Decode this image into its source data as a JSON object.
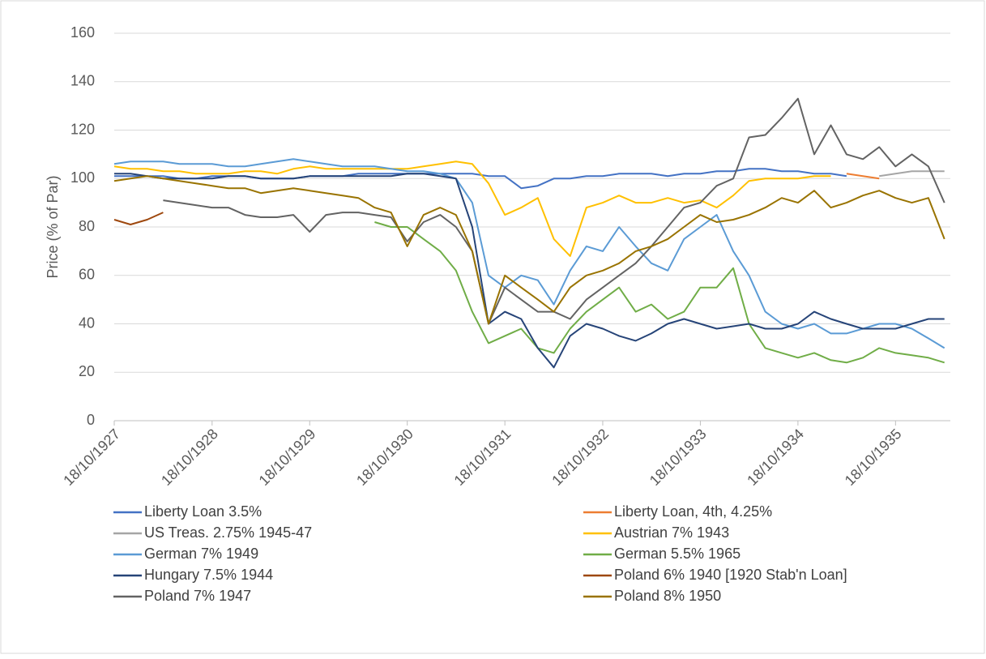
{
  "chart_data": {
    "type": "line",
    "y_label": "Price (% of Par)",
    "x": [
      "1927-10-18",
      "1927-12-18",
      "1928-02-18",
      "1928-04-18",
      "1928-06-18",
      "1928-08-18",
      "1928-10-18",
      "1928-12-18",
      "1929-02-18",
      "1929-04-18",
      "1929-06-18",
      "1929-08-18",
      "1929-10-18",
      "1929-12-18",
      "1930-02-18",
      "1930-04-18",
      "1930-06-18",
      "1930-08-18",
      "1930-10-18",
      "1930-12-18",
      "1931-02-18",
      "1931-04-18",
      "1931-06-18",
      "1931-08-18",
      "1931-10-18",
      "1931-12-18",
      "1932-02-18",
      "1932-04-18",
      "1932-06-18",
      "1932-08-18",
      "1932-10-18",
      "1932-12-18",
      "1933-02-18",
      "1933-04-18",
      "1933-06-18",
      "1933-08-18",
      "1933-10-18",
      "1933-12-18",
      "1934-02-18",
      "1934-04-18",
      "1934-06-18",
      "1934-08-18",
      "1934-10-18",
      "1934-12-18",
      "1935-02-18",
      "1935-04-18",
      "1935-06-18",
      "1935-08-18",
      "1935-10-18",
      "1935-12-18",
      "1936-02-18",
      "1936-04-18"
    ],
    "xlim": [
      "1927-10-18",
      "1936-05-10"
    ],
    "xticks": [
      {
        "value": "1927-10-18",
        "label": "18/10/1927"
      },
      {
        "value": "1928-10-18",
        "label": "18/10/1928"
      },
      {
        "value": "1929-10-18",
        "label": "18/10/1929"
      },
      {
        "value": "1930-10-18",
        "label": "18/10/1930"
      },
      {
        "value": "1931-10-18",
        "label": "18/10/1931"
      },
      {
        "value": "1932-10-18",
        "label": "18/10/1932"
      },
      {
        "value": "1933-10-18",
        "label": "18/10/1933"
      },
      {
        "value": "1934-10-18",
        "label": "18/10/1934"
      },
      {
        "value": "1935-10-18",
        "label": "18/10/1935"
      }
    ],
    "ylim": [
      0,
      160
    ],
    "yticks": [
      0,
      20,
      40,
      60,
      80,
      100,
      120,
      140,
      160
    ],
    "grid": true,
    "legend": "bottom",
    "series": [
      {
        "name": "Liberty Loan 3.5%",
        "color": "#4472c4",
        "values": [
          101,
          101,
          101,
          101,
          100,
          100,
          101,
          101,
          101,
          100,
          100,
          100,
          101,
          101,
          101,
          102,
          102,
          102,
          102,
          102,
          102,
          102,
          102,
          101,
          101,
          96,
          97,
          100,
          100,
          101,
          101,
          102,
          102,
          102,
          101,
          102,
          102,
          103,
          103,
          104,
          104,
          103,
          103,
          102,
          102,
          101,
          null,
          null,
          null,
          null,
          null,
          null
        ]
      },
      {
        "name": "Liberty Loan, 4th, 4.25%",
        "color": "#ed7d31",
        "values": [
          null,
          null,
          null,
          null,
          null,
          null,
          null,
          null,
          null,
          null,
          null,
          null,
          null,
          null,
          null,
          null,
          null,
          null,
          null,
          null,
          null,
          null,
          null,
          null,
          null,
          null,
          null,
          null,
          null,
          null,
          null,
          null,
          null,
          null,
          null,
          null,
          null,
          null,
          null,
          null,
          null,
          null,
          null,
          null,
          null,
          102,
          101,
          100,
          null,
          null,
          null,
          null
        ]
      },
      {
        "name": "US Treas. 2.75% 1945-47",
        "color": "#a5a5a5",
        "values": [
          null,
          null,
          null,
          null,
          null,
          null,
          null,
          null,
          null,
          null,
          null,
          null,
          null,
          null,
          null,
          null,
          null,
          null,
          null,
          null,
          null,
          null,
          null,
          null,
          null,
          null,
          null,
          null,
          null,
          null,
          null,
          null,
          null,
          null,
          null,
          null,
          null,
          null,
          null,
          null,
          null,
          null,
          null,
          null,
          null,
          null,
          null,
          101,
          102,
          103,
          103,
          103
        ]
      },
      {
        "name": "Austrian 7% 1943",
        "color": "#ffc000",
        "values": [
          105,
          104,
          104,
          103,
          103,
          102,
          102,
          102,
          103,
          103,
          102,
          104,
          105,
          104,
          104,
          104,
          104,
          104,
          104,
          105,
          106,
          107,
          106,
          98,
          85,
          88,
          92,
          75,
          68,
          88,
          90,
          93,
          90,
          90,
          92,
          90,
          91,
          88,
          93,
          99,
          100,
          100,
          100,
          101,
          101,
          null,
          null,
          null,
          null,
          null,
          null,
          null
        ]
      },
      {
        "name": "German 7% 1949",
        "color": "#5b9bd5",
        "values": [
          106,
          107,
          107,
          107,
          106,
          106,
          106,
          105,
          105,
          106,
          107,
          108,
          107,
          106,
          105,
          105,
          105,
          104,
          103,
          103,
          102,
          100,
          90,
          60,
          55,
          60,
          58,
          48,
          62,
          72,
          70,
          80,
          72,
          65,
          62,
          75,
          80,
          85,
          70,
          60,
          45,
          40,
          38,
          40,
          36,
          36,
          38,
          40,
          40,
          38,
          34,
          30
        ]
      },
      {
        "name": "German 5.5% 1965",
        "color": "#70ad47",
        "values": [
          null,
          null,
          null,
          null,
          null,
          null,
          null,
          null,
          null,
          null,
          null,
          null,
          null,
          null,
          null,
          null,
          82,
          80,
          80,
          75,
          70,
          62,
          45,
          32,
          35,
          38,
          30,
          28,
          38,
          45,
          50,
          55,
          45,
          48,
          42,
          45,
          55,
          55,
          63,
          40,
          30,
          28,
          26,
          28,
          25,
          24,
          26,
          30,
          28,
          27,
          26,
          24
        ]
      },
      {
        "name": "Hungary 7.5% 1944",
        "color": "#264478",
        "values": [
          102,
          102,
          101,
          100,
          100,
          100,
          100,
          101,
          101,
          100,
          100,
          100,
          101,
          101,
          101,
          101,
          101,
          101,
          102,
          102,
          101,
          100,
          80,
          40,
          45,
          42,
          30,
          22,
          35,
          40,
          38,
          35,
          33,
          36,
          40,
          42,
          40,
          38,
          39,
          40,
          38,
          38,
          40,
          45,
          42,
          40,
          38,
          38,
          38,
          40,
          42,
          42
        ]
      },
      {
        "name": "Poland 6% 1940 [1920 Stab'n Loan]",
        "color": "#9e480e",
        "values": [
          83,
          81,
          83,
          86,
          null,
          null,
          null,
          null,
          null,
          null,
          null,
          null,
          null,
          null,
          null,
          null,
          null,
          null,
          null,
          null,
          null,
          null,
          null,
          null,
          null,
          null,
          null,
          null,
          null,
          null,
          null,
          null,
          null,
          null,
          null,
          null,
          null,
          null,
          null,
          null,
          null,
          null,
          null,
          null,
          null,
          null,
          null,
          null,
          null,
          null,
          null,
          null
        ]
      },
      {
        "name": "Poland 7% 1947",
        "color": "#636363",
        "values": [
          null,
          null,
          null,
          91,
          90,
          89,
          88,
          88,
          85,
          84,
          84,
          85,
          78,
          85,
          86,
          86,
          85,
          84,
          74,
          82,
          85,
          80,
          70,
          40,
          55,
          50,
          45,
          45,
          42,
          50,
          55,
          60,
          65,
          72,
          80,
          88,
          90,
          97,
          100,
          117,
          118,
          125,
          133,
          110,
          122,
          110,
          108,
          113,
          105,
          110,
          105,
          90
        ]
      },
      {
        "name": "Poland 8% 1950",
        "color": "#997300",
        "values": [
          99,
          100,
          101,
          100,
          99,
          98,
          97,
          96,
          96,
          94,
          95,
          96,
          95,
          94,
          93,
          92,
          88,
          86,
          72,
          85,
          88,
          85,
          70,
          40,
          60,
          55,
          50,
          45,
          55,
          60,
          62,
          65,
          70,
          72,
          75,
          80,
          85,
          82,
          83,
          85,
          88,
          92,
          90,
          95,
          88,
          90,
          93,
          95,
          92,
          90,
          92,
          75
        ]
      }
    ]
  }
}
